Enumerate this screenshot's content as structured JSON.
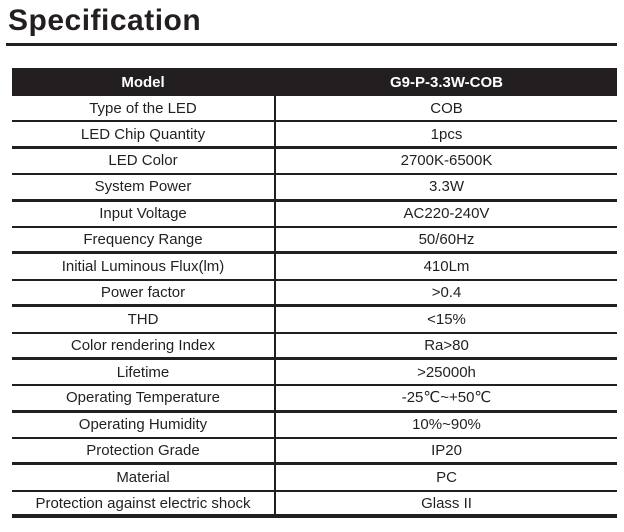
{
  "page": {
    "title": "Specification"
  },
  "colors": {
    "ink": "#231f20",
    "header_bg": "#231f20",
    "header_text": "#ffffff",
    "page_bg": "#ffffff"
  },
  "table": {
    "header": {
      "label": "Model",
      "value": "G9-P-3.3W-COB"
    },
    "rows": [
      {
        "label": "Type of the LED",
        "value": "COB"
      },
      {
        "label": "LED Chip Quantity",
        "value": "1pcs"
      },
      {
        "label": "LED Color",
        "value": "2700K-6500K"
      },
      {
        "label": "System Power",
        "value": "3.3W"
      },
      {
        "label": "Input Voltage",
        "value": "AC220-240V"
      },
      {
        "label": "Frequency Range",
        "value": "50/60Hz"
      },
      {
        "label": "Initial Luminous Flux(lm)",
        "value": "410Lm"
      },
      {
        "label": "Power factor",
        "value": ">0.4"
      },
      {
        "label": "THD",
        "value": "<15%"
      },
      {
        "label": "Color rendering Index",
        "value": "Ra>80"
      },
      {
        "label": "Lifetime",
        "value": ">25000h"
      },
      {
        "label": "Operating Temperature",
        "value": "-25℃~+50℃"
      },
      {
        "label": "Operating Humidity",
        "value": "10%~90%"
      },
      {
        "label": "Protection Grade",
        "value": "IP20"
      },
      {
        "label": "Material",
        "value": "PC"
      },
      {
        "label": "Protection against electric shock",
        "value": "Glass II"
      }
    ]
  }
}
